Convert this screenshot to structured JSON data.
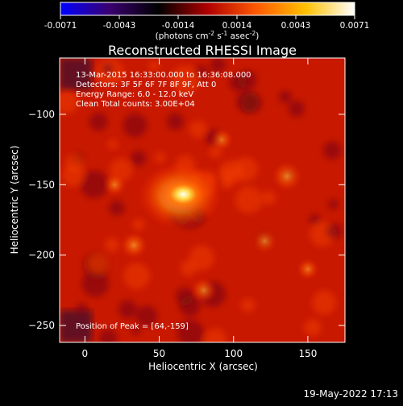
{
  "chart_data": {
    "type": "heatmap",
    "title": "Reconstructed RHESSI Image",
    "xlabel": "Heliocentric X (arcsec)",
    "ylabel": "Heliocentric Y (arcsec)",
    "xlim": [
      -17,
      175
    ],
    "ylim": [
      -262,
      -60
    ],
    "xticks": [
      0,
      50,
      100,
      150
    ],
    "yticks": [
      -100,
      -150,
      -200,
      -250
    ],
    "colorbar": {
      "range": [
        -0.0071,
        0.0071
      ],
      "ticks": [
        "-0.0071",
        "-0.0043",
        "-0.0014",
        "0.0014",
        "0.0043",
        "0.0071"
      ],
      "unit_prefix": "(photons cm",
      "unit_sup1": "-2",
      "unit_mid1": " s",
      "unit_sup2": "-1",
      "unit_mid2": " asec",
      "unit_sup3": "-2",
      "unit_suffix": ")",
      "colormap": [
        "#0000ff",
        "#3a0070",
        "#000000",
        "#b00000",
        "#ff5a00",
        "#ffc000",
        "#ffffff"
      ]
    },
    "annotations": [
      "13-Mar-2015 16:33:00.000 to 16:36:08.000",
      "Detectors: 3F 5F 6F 7F 8F 9F, Att 0",
      "Energy Range: 6.0 - 12.0 keV",
      "Clean     Total counts: 3.00E+04"
    ],
    "peak_label": "Position of Peak = [64,-159]",
    "sources": [
      {
        "x": 64,
        "y": -158,
        "value": 0.0071
      },
      {
        "x": 136,
        "y": -144,
        "value": 0.0036
      },
      {
        "x": 33,
        "y": -193,
        "value": 0.003
      },
      {
        "x": 80,
        "y": -225,
        "value": 0.0026
      },
      {
        "x": 121,
        "y": -190,
        "value": 0.0024
      },
      {
        "x": 20,
        "y": -150,
        "value": 0.002
      },
      {
        "x": 92,
        "y": -118,
        "value": 0.0019
      },
      {
        "x": 150,
        "y": -210,
        "value": 0.0017
      }
    ]
  },
  "timestamp": "19-May-2022 17:13"
}
